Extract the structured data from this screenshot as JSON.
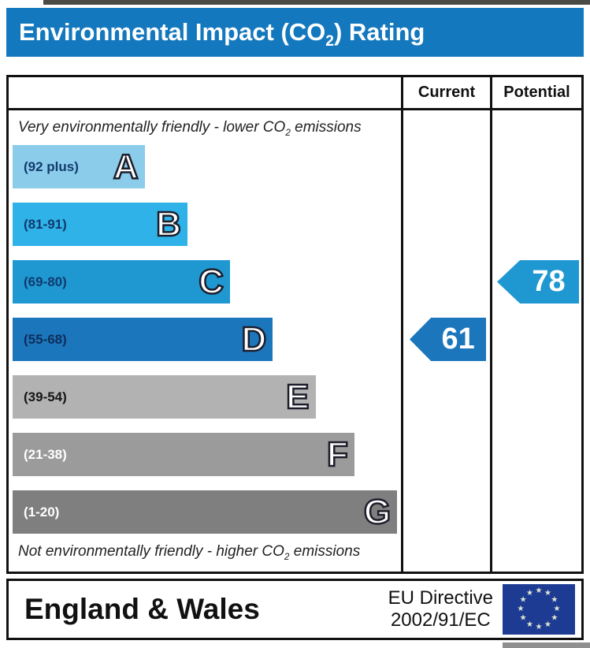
{
  "title": {
    "pre": "Environmental Impact (CO",
    "sub": "2",
    "post": ") Rating"
  },
  "header": {
    "current": "Current",
    "potential": "Potential"
  },
  "notes": {
    "top": {
      "pre": "Very environmentally friendly - lower CO",
      "sub": "2",
      "post": " emissions"
    },
    "bottom": {
      "pre": "Not environmentally friendly - higher CO",
      "sub": "2",
      "post": " emissions"
    }
  },
  "chart_data": {
    "type": "bar",
    "title": "Environmental Impact (CO2) Rating",
    "xlabel": "",
    "ylabel": "",
    "legend": [
      "Current",
      "Potential"
    ],
    "bands": [
      {
        "letter": "A",
        "range": "(92 plus)",
        "width_pct": 34,
        "color": "#8accea",
        "label_color": "#113a6d"
      },
      {
        "letter": "B",
        "range": "(81-91)",
        "width_pct": 45,
        "color": "#2fb2e8",
        "label_color": "#113a6d"
      },
      {
        "letter": "C",
        "range": "(69-80)",
        "width_pct": 56,
        "color": "#1f98d2",
        "label_color": "#113a6d"
      },
      {
        "letter": "D",
        "range": "(55-68)",
        "width_pct": 67,
        "color": "#1b76bc",
        "label_color": "#0f2d5a"
      },
      {
        "letter": "E",
        "range": "(39-54)",
        "width_pct": 78,
        "color": "#b2b2b2",
        "label_color": "#161616"
      },
      {
        "letter": "F",
        "range": "(21-38)",
        "width_pct": 88,
        "color": "#9b9b9b",
        "label_color": "#ffffff"
      },
      {
        "letter": "G",
        "range": "(1-20)",
        "width_pct": 99,
        "color": "#7f7f7f",
        "label_color": "#ffffff"
      }
    ],
    "current": {
      "value": 61,
      "band": "D",
      "color": "#1b76bc"
    },
    "potential": {
      "value": 78,
      "band": "C",
      "color": "#1f98d2"
    }
  },
  "footer": {
    "region": "England & Wales",
    "directive_line1": "EU Directive",
    "directive_line2": "2002/91/EC",
    "eu_flag": {
      "star_glyph": "★",
      "blue": "#1e3b93"
    }
  },
  "colors": {
    "banner_blue": "#1478be",
    "border_black": "#111111"
  }
}
